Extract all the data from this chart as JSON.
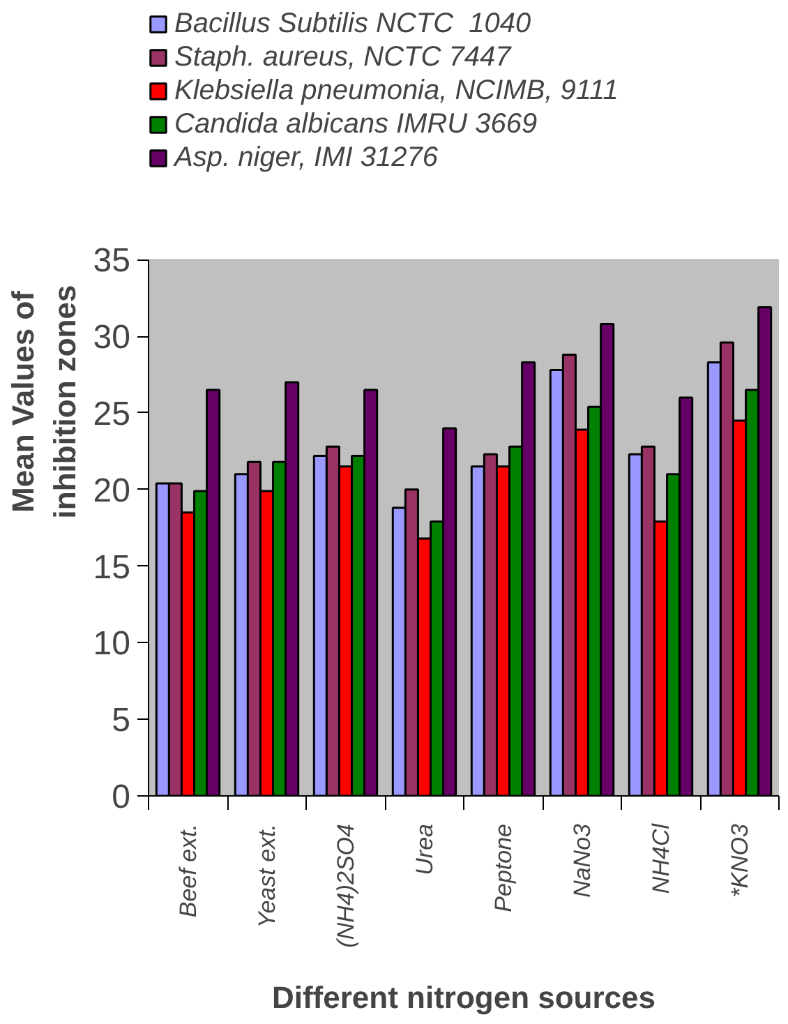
{
  "chart_data": {
    "type": "bar",
    "xlabel": "Different nitrogen sources",
    "ylabel": "Mean Values of inhibition zones",
    "categories": [
      "Beef ext.",
      "Yeast ext.",
      "(NH4)2SO4",
      "Urea",
      "Peptone",
      "NaNo3",
      "NH4Cl",
      "*KNO3"
    ],
    "series": [
      {
        "name": "Bacillus Subtilis NCTC  1040",
        "color": "#9999ff",
        "values": [
          20.4,
          21.0,
          22.2,
          18.8,
          21.5,
          27.8,
          22.3,
          28.3
        ]
      },
      {
        "name": "Staph. aureus, NCTC 7447",
        "color": "#993366",
        "values": [
          20.4,
          21.8,
          22.8,
          20.0,
          22.3,
          28.8,
          22.8,
          29.6
        ]
      },
      {
        "name": "Klebsiella pneumonia, NCIMB, 9111",
        "color": "#ff0000",
        "values": [
          18.5,
          19.9,
          21.5,
          16.8,
          21.5,
          23.9,
          17.9,
          24.5
        ]
      },
      {
        "name": "Candida albicans IMRU 3669",
        "color": "#008000",
        "values": [
          19.9,
          21.8,
          22.2,
          17.9,
          22.8,
          25.4,
          21.0,
          26.5
        ]
      },
      {
        "name": "Asp. niger, IMI 31276",
        "color": "#660066",
        "values": [
          26.5,
          27.0,
          26.5,
          24.0,
          28.3,
          30.8,
          26.0,
          31.9
        ]
      }
    ],
    "ylim": [
      0,
      35
    ],
    "yticks": [
      0,
      5,
      10,
      15,
      20,
      25,
      30,
      35
    ],
    "grid": "y",
    "legend": "top left"
  }
}
